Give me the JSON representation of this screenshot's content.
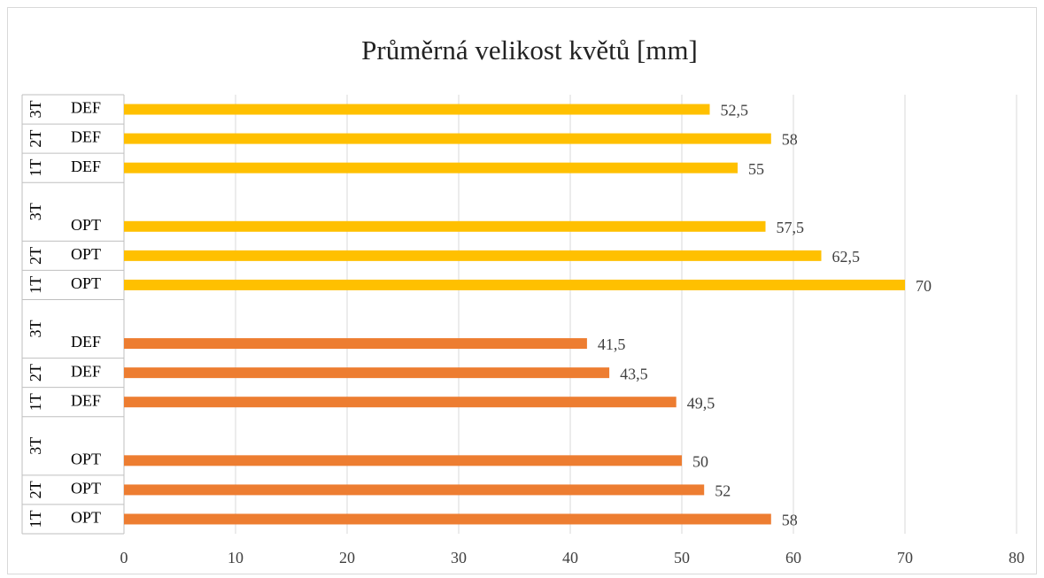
{
  "chart_data": {
    "type": "bar",
    "orientation": "horizontal",
    "title": "Průměrná velikost květů [mm]",
    "groups": [
      "1T",
      "2T",
      "3T",
      "1T",
      "2T",
      "3T",
      "1T",
      "2T",
      "3T",
      "1T",
      "2T",
      "3T"
    ],
    "categories": [
      "OPT",
      "OPT",
      "OPT",
      "DEF",
      "DEF",
      "DEF",
      "OPT",
      "OPT",
      "OPT",
      "DEF",
      "DEF",
      "DEF"
    ],
    "values": [
      58,
      52,
      50,
      49.5,
      43.5,
      41.5,
      70,
      62.5,
      57.5,
      55,
      58,
      52.5
    ],
    "value_labels": [
      "58",
      "52",
      "50",
      "49,5",
      "43,5",
      "41,5",
      "70",
      "62,5",
      "57,5",
      "55",
      "58",
      "52,5"
    ],
    "colors": [
      "#ed7d31",
      "#ed7d31",
      "#ed7d31",
      "#ed7d31",
      "#ed7d31",
      "#ed7d31",
      "#ffc000",
      "#ffc000",
      "#ffc000",
      "#ffc000",
      "#ffc000",
      "#ffc000"
    ],
    "xlim": [
      0,
      80
    ],
    "xticks": [
      0,
      10,
      20,
      30,
      40,
      50,
      60,
      70,
      80
    ],
    "grid": true
  }
}
